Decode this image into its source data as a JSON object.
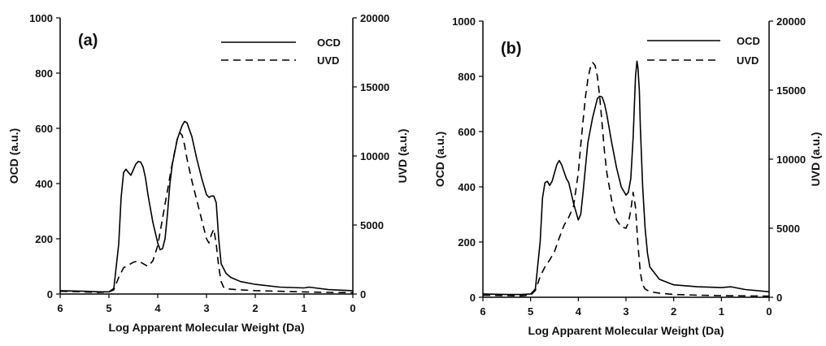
{
  "chart_data": [
    {
      "type": "line",
      "panel_label": "(a)",
      "xlabel": "Log Apparent Molecular Weight (Da)",
      "ylabel_left": "OCD (a.u.)",
      "ylabel_right": "UVD (a.u.)",
      "xlim": [
        6,
        0
      ],
      "ylim_left": [
        0,
        1000
      ],
      "ylim_right": [
        0,
        20000
      ],
      "x_ticks": [
        "6",
        "5",
        "4",
        "3",
        "2",
        "1",
        "0"
      ],
      "y_left_ticks": [
        "0",
        "200",
        "400",
        "600",
        "800",
        "1000"
      ],
      "y_right_ticks": [
        "0",
        "5000",
        "10000",
        "15000",
        "20000"
      ],
      "grid": false,
      "legend_position": "top-right",
      "series": [
        {
          "name": "OCD",
          "axis": "left",
          "style": "solid",
          "x": [
            6,
            5.5,
            5.2,
            5.0,
            4.9,
            4.8,
            4.75,
            4.7,
            4.65,
            4.6,
            4.55,
            4.5,
            4.45,
            4.4,
            4.35,
            4.3,
            4.25,
            4.2,
            4.1,
            4.0,
            3.95,
            3.9,
            3.85,
            3.8,
            3.75,
            3.7,
            3.6,
            3.5,
            3.45,
            3.4,
            3.3,
            3.2,
            3.1,
            3.0,
            2.95,
            2.9,
            2.85,
            2.8,
            2.75,
            2.7,
            2.6,
            2.5,
            2.3,
            2.0,
            1.5,
            1.0,
            0.9,
            0.5,
            0
          ],
          "y": [
            12,
            10,
            8,
            8,
            20,
            180,
            350,
            440,
            452,
            440,
            430,
            450,
            470,
            480,
            478,
            460,
            420,
            360,
            260,
            185,
            160,
            165,
            200,
            290,
            400,
            470,
            560,
            610,
            625,
            620,
            570,
            490,
            420,
            360,
            350,
            355,
            355,
            330,
            200,
            110,
            75,
            60,
            45,
            35,
            25,
            22,
            25,
            16,
            12
          ]
        },
        {
          "name": "UVD",
          "axis": "right",
          "style": "dashed",
          "x": [
            6,
            5.5,
            5.2,
            5.0,
            4.9,
            4.8,
            4.7,
            4.6,
            4.5,
            4.4,
            4.3,
            4.2,
            4.1,
            4.0,
            3.9,
            3.8,
            3.7,
            3.6,
            3.55,
            3.5,
            3.45,
            3.4,
            3.3,
            3.2,
            3.1,
            3.0,
            2.95,
            2.9,
            2.85,
            2.8,
            2.75,
            2.7,
            2.65,
            2.6,
            2.5,
            2.3,
            2.0,
            1.5,
            1.0,
            0.5,
            0
          ],
          "y": [
            200,
            150,
            120,
            150,
            300,
            1200,
            1900,
            2100,
            2300,
            2400,
            2200,
            2000,
            2400,
            3500,
            5500,
            7500,
            9500,
            11200,
            11700,
            11500,
            10800,
            9800,
            8200,
            6800,
            5400,
            4000,
            3700,
            4300,
            4700,
            3600,
            2000,
            900,
            500,
            400,
            350,
            300,
            250,
            200,
            150,
            120,
            100
          ]
        }
      ]
    },
    {
      "type": "line",
      "panel_label": "(b)",
      "xlabel": "Log Apparent Molecular Weight (Da)",
      "ylabel_left": "OCD (a.u.)",
      "ylabel_right": "UVD (a.u.)",
      "xlim": [
        6,
        0
      ],
      "ylim_left": [
        0,
        1000
      ],
      "ylim_right": [
        0,
        20000
      ],
      "x_ticks": [
        "6",
        "5",
        "4",
        "3",
        "2",
        "1",
        "0"
      ],
      "y_left_ticks": [
        "0",
        "200",
        "400",
        "600",
        "800",
        "1000"
      ],
      "y_right_ticks": [
        "0",
        "5000",
        "10000",
        "15000",
        "20000"
      ],
      "grid": false,
      "legend_position": "top-right",
      "series": [
        {
          "name": "OCD",
          "axis": "left",
          "style": "solid",
          "x": [
            6,
            5.5,
            5.2,
            5.0,
            4.9,
            4.8,
            4.75,
            4.7,
            4.65,
            4.6,
            4.55,
            4.5,
            4.45,
            4.4,
            4.35,
            4.3,
            4.25,
            4.2,
            4.1,
            4.0,
            3.95,
            3.9,
            3.85,
            3.8,
            3.7,
            3.6,
            3.55,
            3.5,
            3.45,
            3.4,
            3.3,
            3.2,
            3.1,
            3.0,
            2.95,
            2.9,
            2.85,
            2.8,
            2.77,
            2.75,
            2.72,
            2.7,
            2.65,
            2.6,
            2.55,
            2.5,
            2.3,
            2.0,
            1.5,
            1.0,
            0.8,
            0.5,
            0
          ],
          "y": [
            12,
            10,
            10,
            12,
            30,
            200,
            360,
            415,
            420,
            405,
            420,
            450,
            480,
            495,
            480,
            455,
            430,
            415,
            340,
            280,
            300,
            380,
            470,
            560,
            650,
            720,
            728,
            725,
            700,
            660,
            560,
            470,
            400,
            370,
            380,
            430,
            580,
            800,
            855,
            830,
            750,
            620,
            400,
            250,
            160,
            110,
            65,
            45,
            38,
            35,
            38,
            28,
            20
          ]
        },
        {
          "name": "UVD",
          "axis": "right",
          "style": "dashed",
          "x": [
            6,
            5.5,
            5.2,
            5.0,
            4.9,
            4.8,
            4.7,
            4.6,
            4.5,
            4.4,
            4.3,
            4.2,
            4.1,
            4.0,
            3.95,
            3.9,
            3.85,
            3.8,
            3.75,
            3.7,
            3.65,
            3.6,
            3.55,
            3.5,
            3.45,
            3.4,
            3.3,
            3.2,
            3.1,
            3.0,
            2.95,
            2.9,
            2.85,
            2.8,
            2.75,
            2.7,
            2.65,
            2.6,
            2.5,
            2.3,
            2.0,
            1.5,
            1.0,
            0.5,
            0
          ],
          "y": [
            150,
            120,
            100,
            150,
            500,
            1500,
            2200,
            2700,
            3300,
            4300,
            5200,
            5800,
            6600,
            9000,
            11000,
            12800,
            14500,
            15800,
            16600,
            17000,
            16800,
            16000,
            14500,
            12500,
            10500,
            9000,
            7000,
            5600,
            5100,
            5000,
            5400,
            6300,
            7600,
            6500,
            3800,
            1800,
            900,
            600,
            400,
            300,
            200,
            150,
            120,
            100,
            80
          ]
        }
      ]
    }
  ]
}
